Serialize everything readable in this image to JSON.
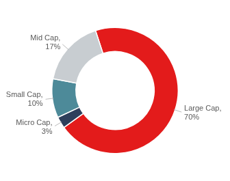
{
  "chart_data": {
    "type": "doughnut",
    "values": [
      70,
      3,
      10,
      17
    ],
    "value_labels": [
      "Large Cap,\n70%",
      "Micro Cap,\n3%",
      "Small Cap,\n10%",
      "Mid Cap,\n17%"
    ],
    "colors": [
      "#e31b1b",
      "#2e3f5c",
      "#4d8a99",
      "#c8cdd1"
    ],
    "data_labels": true
  }
}
